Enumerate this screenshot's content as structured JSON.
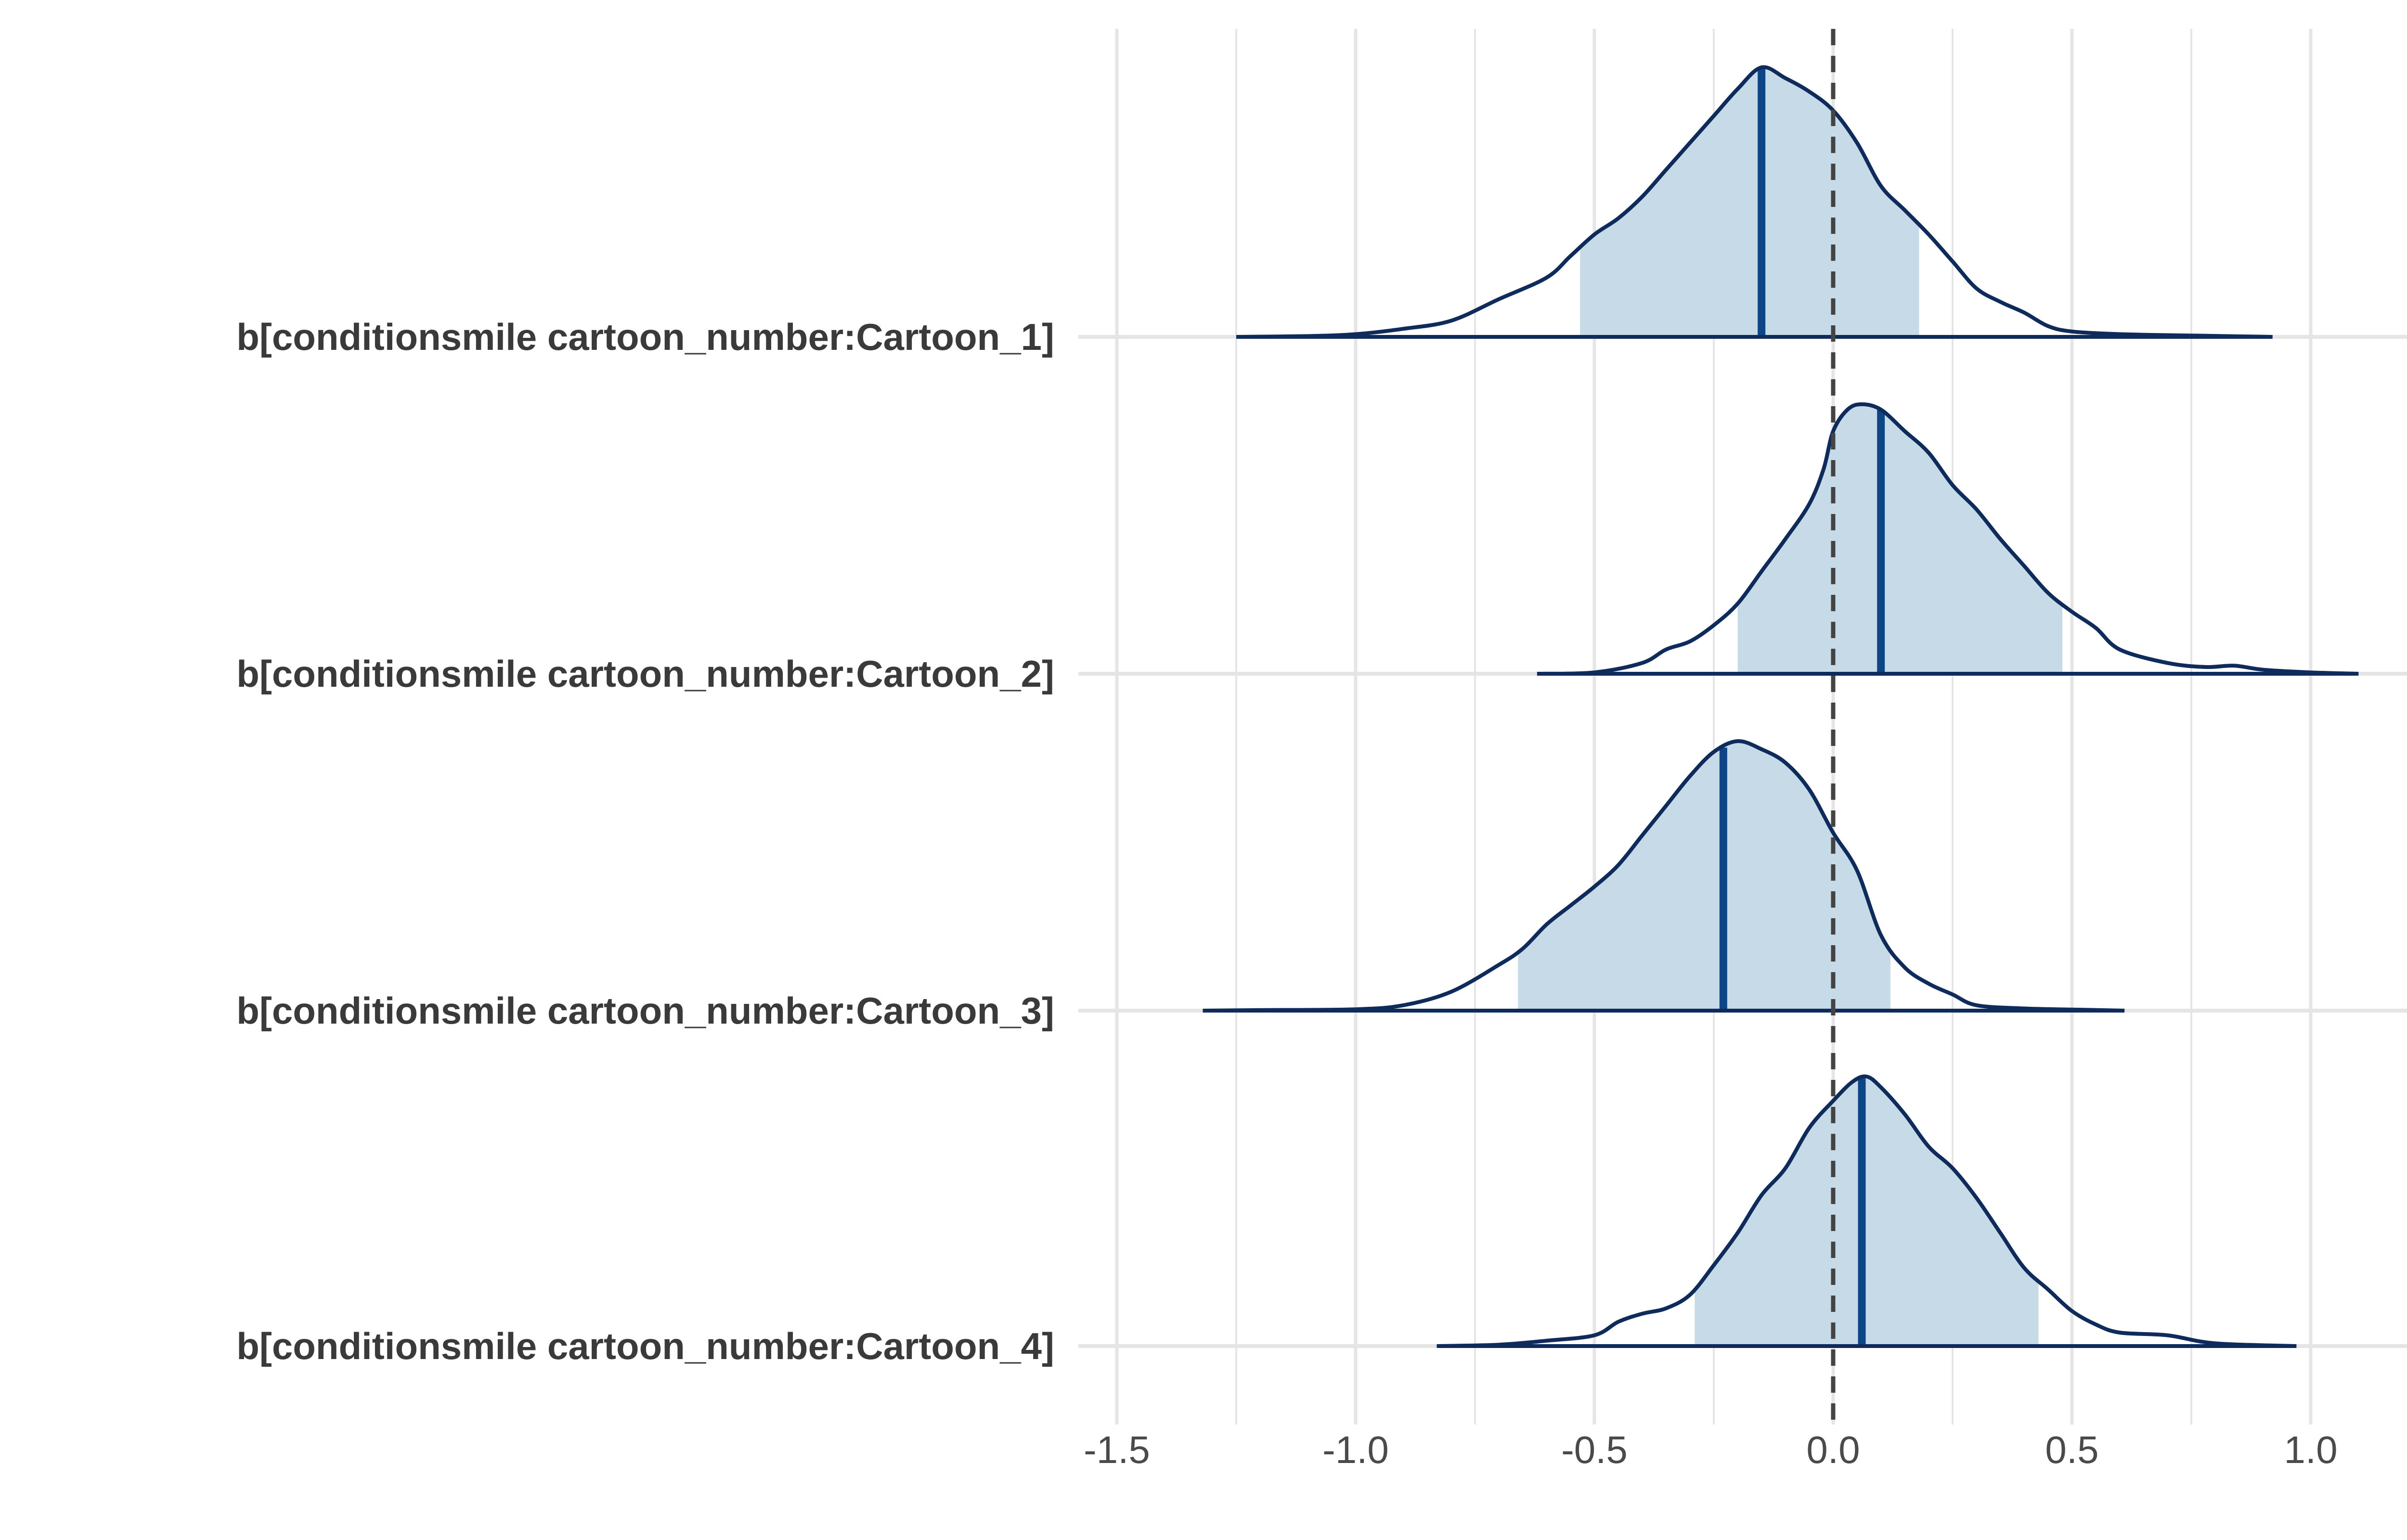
{
  "chart_data": {
    "type": "area",
    "subtype": "ridgeline-density (posterior areas)",
    "title": "",
    "xlabel": "",
    "ylabel": "",
    "xlim": [
      -1.65,
      1.35
    ],
    "xticks": [
      -1.5,
      -1.0,
      -0.5,
      0.0,
      0.5,
      1.0
    ],
    "xtick_labels": [
      "-1.5",
      "-1.0",
      "-0.5",
      "0.0",
      "0.5",
      "1.0"
    ],
    "vline": 0.0,
    "grid": true,
    "legend": "none",
    "colors": {
      "fill": "#c6dae8",
      "outline": "#0f2b5b",
      "median": "#0e4584",
      "zero_line": "#444444",
      "grid": "#e5e5e5",
      "label": "#3a3a3a"
    },
    "series": [
      {
        "name": "b[conditionsmile cartoon_number:Cartoon_1]",
        "median": -0.15,
        "interval": [
          -0.53,
          0.18
        ],
        "range": [
          -1.25,
          0.92
        ],
        "density": [
          [
            -1.25,
            0.0
          ],
          [
            -1.1,
            0.003
          ],
          [
            -1.0,
            0.01
          ],
          [
            -0.9,
            0.03
          ],
          [
            -0.8,
            0.06
          ],
          [
            -0.7,
            0.14
          ],
          [
            -0.6,
            0.22
          ],
          [
            -0.55,
            0.3
          ],
          [
            -0.5,
            0.38
          ],
          [
            -0.45,
            0.44
          ],
          [
            -0.4,
            0.52
          ],
          [
            -0.35,
            0.62
          ],
          [
            -0.3,
            0.72
          ],
          [
            -0.25,
            0.82
          ],
          [
            -0.2,
            0.92
          ],
          [
            -0.15,
            1.0
          ],
          [
            -0.1,
            0.96
          ],
          [
            -0.05,
            0.91
          ],
          [
            0.0,
            0.84
          ],
          [
            0.05,
            0.72
          ],
          [
            0.1,
            0.56
          ],
          [
            0.15,
            0.47
          ],
          [
            0.2,
            0.38
          ],
          [
            0.25,
            0.28
          ],
          [
            0.3,
            0.18
          ],
          [
            0.35,
            0.13
          ],
          [
            0.4,
            0.09
          ],
          [
            0.45,
            0.04
          ],
          [
            0.5,
            0.02
          ],
          [
            0.6,
            0.01
          ],
          [
            0.75,
            0.005
          ],
          [
            0.92,
            0.0
          ]
        ]
      },
      {
        "name": "b[conditionsmile cartoon_number:Cartoon_2]",
        "median": 0.1,
        "interval": [
          -0.2,
          0.48
        ],
        "range": [
          -0.62,
          1.1
        ],
        "density": [
          [
            -0.62,
            0.0
          ],
          [
            -0.5,
            0.005
          ],
          [
            -0.4,
            0.04
          ],
          [
            -0.35,
            0.09
          ],
          [
            -0.3,
            0.12
          ],
          [
            -0.25,
            0.18
          ],
          [
            -0.2,
            0.26
          ],
          [
            -0.15,
            0.38
          ],
          [
            -0.1,
            0.5
          ],
          [
            -0.05,
            0.63
          ],
          [
            -0.02,
            0.76
          ],
          [
            0.0,
            0.9
          ],
          [
            0.03,
            0.98
          ],
          [
            0.06,
            1.0
          ],
          [
            0.1,
            0.98
          ],
          [
            0.15,
            0.9
          ],
          [
            0.2,
            0.82
          ],
          [
            0.25,
            0.7
          ],
          [
            0.3,
            0.61
          ],
          [
            0.35,
            0.5
          ],
          [
            0.4,
            0.4
          ],
          [
            0.45,
            0.3
          ],
          [
            0.5,
            0.23
          ],
          [
            0.55,
            0.17
          ],
          [
            0.6,
            0.09
          ],
          [
            0.7,
            0.04
          ],
          [
            0.78,
            0.025
          ],
          [
            0.84,
            0.03
          ],
          [
            0.9,
            0.015
          ],
          [
            1.0,
            0.005
          ],
          [
            1.1,
            0.0
          ]
        ]
      },
      {
        "name": "b[conditionsmile cartoon_number:Cartoon_3]",
        "median": -0.23,
        "interval": [
          -0.66,
          0.12
        ],
        "range": [
          -1.32,
          0.61
        ],
        "density": [
          [
            -1.32,
            0.0
          ],
          [
            -1.2,
            0.002
          ],
          [
            -1.0,
            0.005
          ],
          [
            -0.9,
            0.02
          ],
          [
            -0.8,
            0.07
          ],
          [
            -0.7,
            0.17
          ],
          [
            -0.65,
            0.23
          ],
          [
            -0.6,
            0.32
          ],
          [
            -0.55,
            0.39
          ],
          [
            -0.5,
            0.46
          ],
          [
            -0.45,
            0.54
          ],
          [
            -0.4,
            0.65
          ],
          [
            -0.35,
            0.76
          ],
          [
            -0.3,
            0.87
          ],
          [
            -0.25,
            0.96
          ],
          [
            -0.2,
            1.0
          ],
          [
            -0.15,
            0.97
          ],
          [
            -0.1,
            0.92
          ],
          [
            -0.05,
            0.82
          ],
          [
            0.0,
            0.66
          ],
          [
            0.05,
            0.52
          ],
          [
            0.1,
            0.28
          ],
          [
            0.15,
            0.16
          ],
          [
            0.2,
            0.1
          ],
          [
            0.25,
            0.06
          ],
          [
            0.3,
            0.02
          ],
          [
            0.4,
            0.008
          ],
          [
            0.5,
            0.004
          ],
          [
            0.61,
            0.0
          ]
        ]
      },
      {
        "name": "b[conditionsmile cartoon_number:Cartoon_4]",
        "median": 0.06,
        "interval": [
          -0.29,
          0.43
        ],
        "range": [
          -0.83,
          0.97
        ],
        "density": [
          [
            -0.83,
            0.0
          ],
          [
            -0.7,
            0.005
          ],
          [
            -0.6,
            0.02
          ],
          [
            -0.5,
            0.04
          ],
          [
            -0.45,
            0.09
          ],
          [
            -0.4,
            0.12
          ],
          [
            -0.35,
            0.14
          ],
          [
            -0.3,
            0.19
          ],
          [
            -0.25,
            0.3
          ],
          [
            -0.2,
            0.42
          ],
          [
            -0.15,
            0.56
          ],
          [
            -0.1,
            0.66
          ],
          [
            -0.05,
            0.81
          ],
          [
            0.0,
            0.91
          ],
          [
            0.04,
            0.98
          ],
          [
            0.07,
            1.0
          ],
          [
            0.1,
            0.96
          ],
          [
            0.15,
            0.86
          ],
          [
            0.2,
            0.74
          ],
          [
            0.25,
            0.66
          ],
          [
            0.3,
            0.55
          ],
          [
            0.35,
            0.42
          ],
          [
            0.4,
            0.29
          ],
          [
            0.45,
            0.21
          ],
          [
            0.5,
            0.13
          ],
          [
            0.55,
            0.08
          ],
          [
            0.6,
            0.05
          ],
          [
            0.7,
            0.04
          ],
          [
            0.8,
            0.01
          ],
          [
            0.97,
            0.0
          ]
        ]
      }
    ]
  }
}
